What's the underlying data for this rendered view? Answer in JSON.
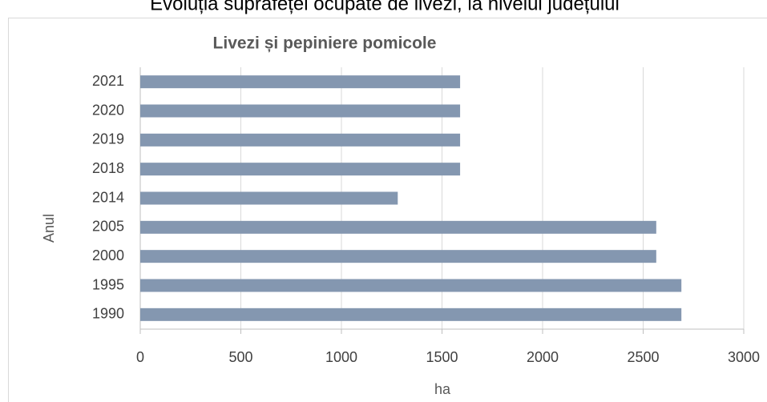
{
  "chart_data": {
    "type": "bar",
    "orientation": "horizontal",
    "caption": "Evoluția suprafeței ocupate de livezi, la nivelul județului",
    "title": "Livezi și pepiniere pomicole",
    "x_label": "ha",
    "y_label": "Anul",
    "categories": [
      "1990",
      "1995",
      "2000",
      "2005",
      "2014",
      "2018",
      "2019",
      "2020",
      "2021"
    ],
    "values": [
      2690,
      2690,
      2565,
      2565,
      1280,
      1590,
      1590,
      1590,
      1590
    ],
    "color": "#8497b0",
    "xlim": [
      0,
      3000
    ],
    "xticks": [
      0,
      500,
      1000,
      1500,
      2000,
      2500,
      3000
    ],
    "grid": true
  }
}
